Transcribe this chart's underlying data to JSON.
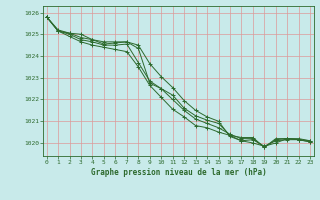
{
  "title": "Graphe pression niveau de la mer (hPa)",
  "background_color": "#c8eaea",
  "grid_color": "#dd9999",
  "line_color": "#2d6a2d",
  "x_ticks": [
    0,
    1,
    2,
    3,
    4,
    5,
    6,
    7,
    8,
    9,
    10,
    11,
    12,
    13,
    14,
    15,
    16,
    17,
    18,
    19,
    20,
    21,
    22,
    23
  ],
  "y_ticks": [
    1020,
    1021,
    1022,
    1023,
    1024,
    1025,
    1026
  ],
  "ylim": [
    1019.4,
    1026.3
  ],
  "xlim": [
    -0.3,
    23.3
  ],
  "line1": [
    1025.8,
    1025.2,
    1025.05,
    1025.0,
    1024.75,
    1024.65,
    1024.65,
    1024.65,
    1024.35,
    1022.75,
    1022.5,
    1022.2,
    1021.6,
    1021.25,
    1021.05,
    1020.9,
    1020.35,
    1020.25,
    1020.25,
    1019.8,
    1020.15,
    1020.2,
    1020.2,
    1020.1
  ],
  "line2": [
    1025.8,
    1025.15,
    1025.05,
    1024.85,
    1024.75,
    1024.55,
    1024.6,
    1024.65,
    1024.5,
    1023.65,
    1023.05,
    1022.55,
    1021.95,
    1021.5,
    1021.2,
    1021.0,
    1020.3,
    1020.1,
    1020.15,
    1019.85,
    1020.1,
    1020.15,
    1020.15,
    1020.05
  ],
  "line3": [
    1025.8,
    1025.15,
    1025.0,
    1024.75,
    1024.65,
    1024.5,
    1024.5,
    1024.55,
    1023.7,
    1022.85,
    1022.5,
    1022.0,
    1021.5,
    1021.1,
    1020.9,
    1020.7,
    1020.4,
    1020.2,
    1020.2,
    1019.8,
    1020.2,
    1020.2,
    1020.15,
    1020.05
  ],
  "line4": [
    1025.8,
    1025.15,
    1024.9,
    1024.65,
    1024.5,
    1024.4,
    1024.3,
    1024.2,
    1023.5,
    1022.65,
    1022.1,
    1021.55,
    1021.2,
    1020.8,
    1020.7,
    1020.5,
    1020.35,
    1020.1,
    1020.0,
    1019.85,
    1020.0,
    1020.2,
    1020.15,
    1020.1
  ]
}
